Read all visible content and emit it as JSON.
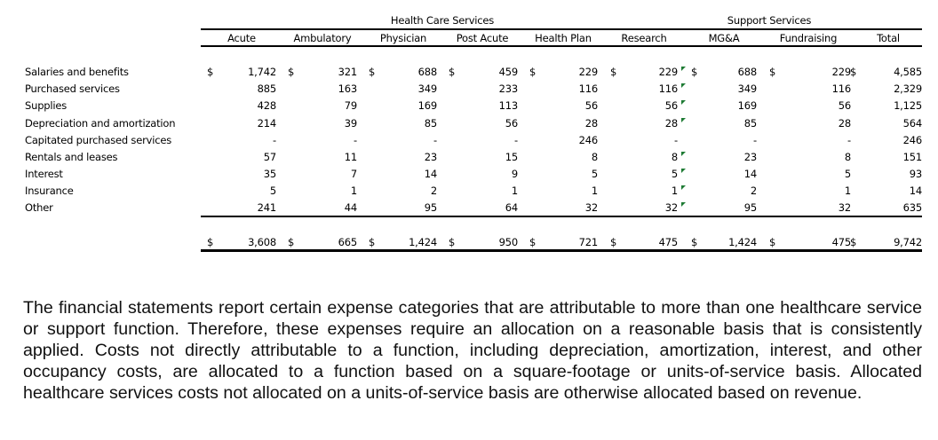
{
  "table": {
    "group_headers": [
      "Health Care Services",
      "Support Services"
    ],
    "columns": [
      "Acute",
      "Ambulatory",
      "Physician",
      "Post Acute",
      "Health Plan",
      "Research",
      "MG&A",
      "Fundraising",
      "Total"
    ],
    "currency_symbol": "$",
    "rows": [
      {
        "label": "Salaries and benefits",
        "values": [
          "1,742",
          "321",
          "688",
          "459",
          "229",
          "229",
          "688",
          "229",
          "4,585"
        ]
      },
      {
        "label": "Purchased services",
        "values": [
          "885",
          "163",
          "349",
          "233",
          "116",
          "116",
          "349",
          "116",
          "2,329"
        ]
      },
      {
        "label": "Supplies",
        "values": [
          "428",
          "79",
          "169",
          "113",
          "56",
          "56",
          "169",
          "56",
          "1,125"
        ]
      },
      {
        "label": "Depreciation and amortization",
        "values": [
          "214",
          "39",
          "85",
          "56",
          "28",
          "28",
          "85",
          "28",
          "564"
        ]
      },
      {
        "label": "Capitated purchased services",
        "values": [
          "-",
          "-",
          "-",
          "-",
          "246",
          "-",
          "-",
          "-",
          "246"
        ]
      },
      {
        "label": "Rentals and leases",
        "values": [
          "57",
          "11",
          "23",
          "15",
          "8",
          "8",
          "23",
          "8",
          "151"
        ]
      },
      {
        "label": "Interest",
        "values": [
          "35",
          "7",
          "14",
          "9",
          "5",
          "5",
          "14",
          "5",
          "93"
        ]
      },
      {
        "label": "Insurance",
        "values": [
          "5",
          "1",
          "2",
          "1",
          "1",
          "1",
          "2",
          "1",
          "14"
        ]
      },
      {
        "label": "Other",
        "values": [
          "241",
          "44",
          "95",
          "64",
          "32",
          "32",
          "95",
          "32",
          "635"
        ]
      }
    ],
    "totals": [
      "3,608",
      "665",
      "1,424",
      "950",
      "721",
      "475",
      "1,424",
      "475",
      "9,742"
    ],
    "flag_color": "#1e7b34"
  },
  "paragraph": "The financial statements report certain expense categories that are attributable to more than one healthcare service or support function. Therefore, these expenses require an allocation on a reasonable basis that is consistently applied. Costs not directly attributable to a function, including depreciation, amortization, interest, and other occupancy costs, are allocated to a function based on a square-footage or units-of-service basis. Allocated healthcare services costs not allocated on a units-of-service basis are otherwise allocated based on revenue."
}
